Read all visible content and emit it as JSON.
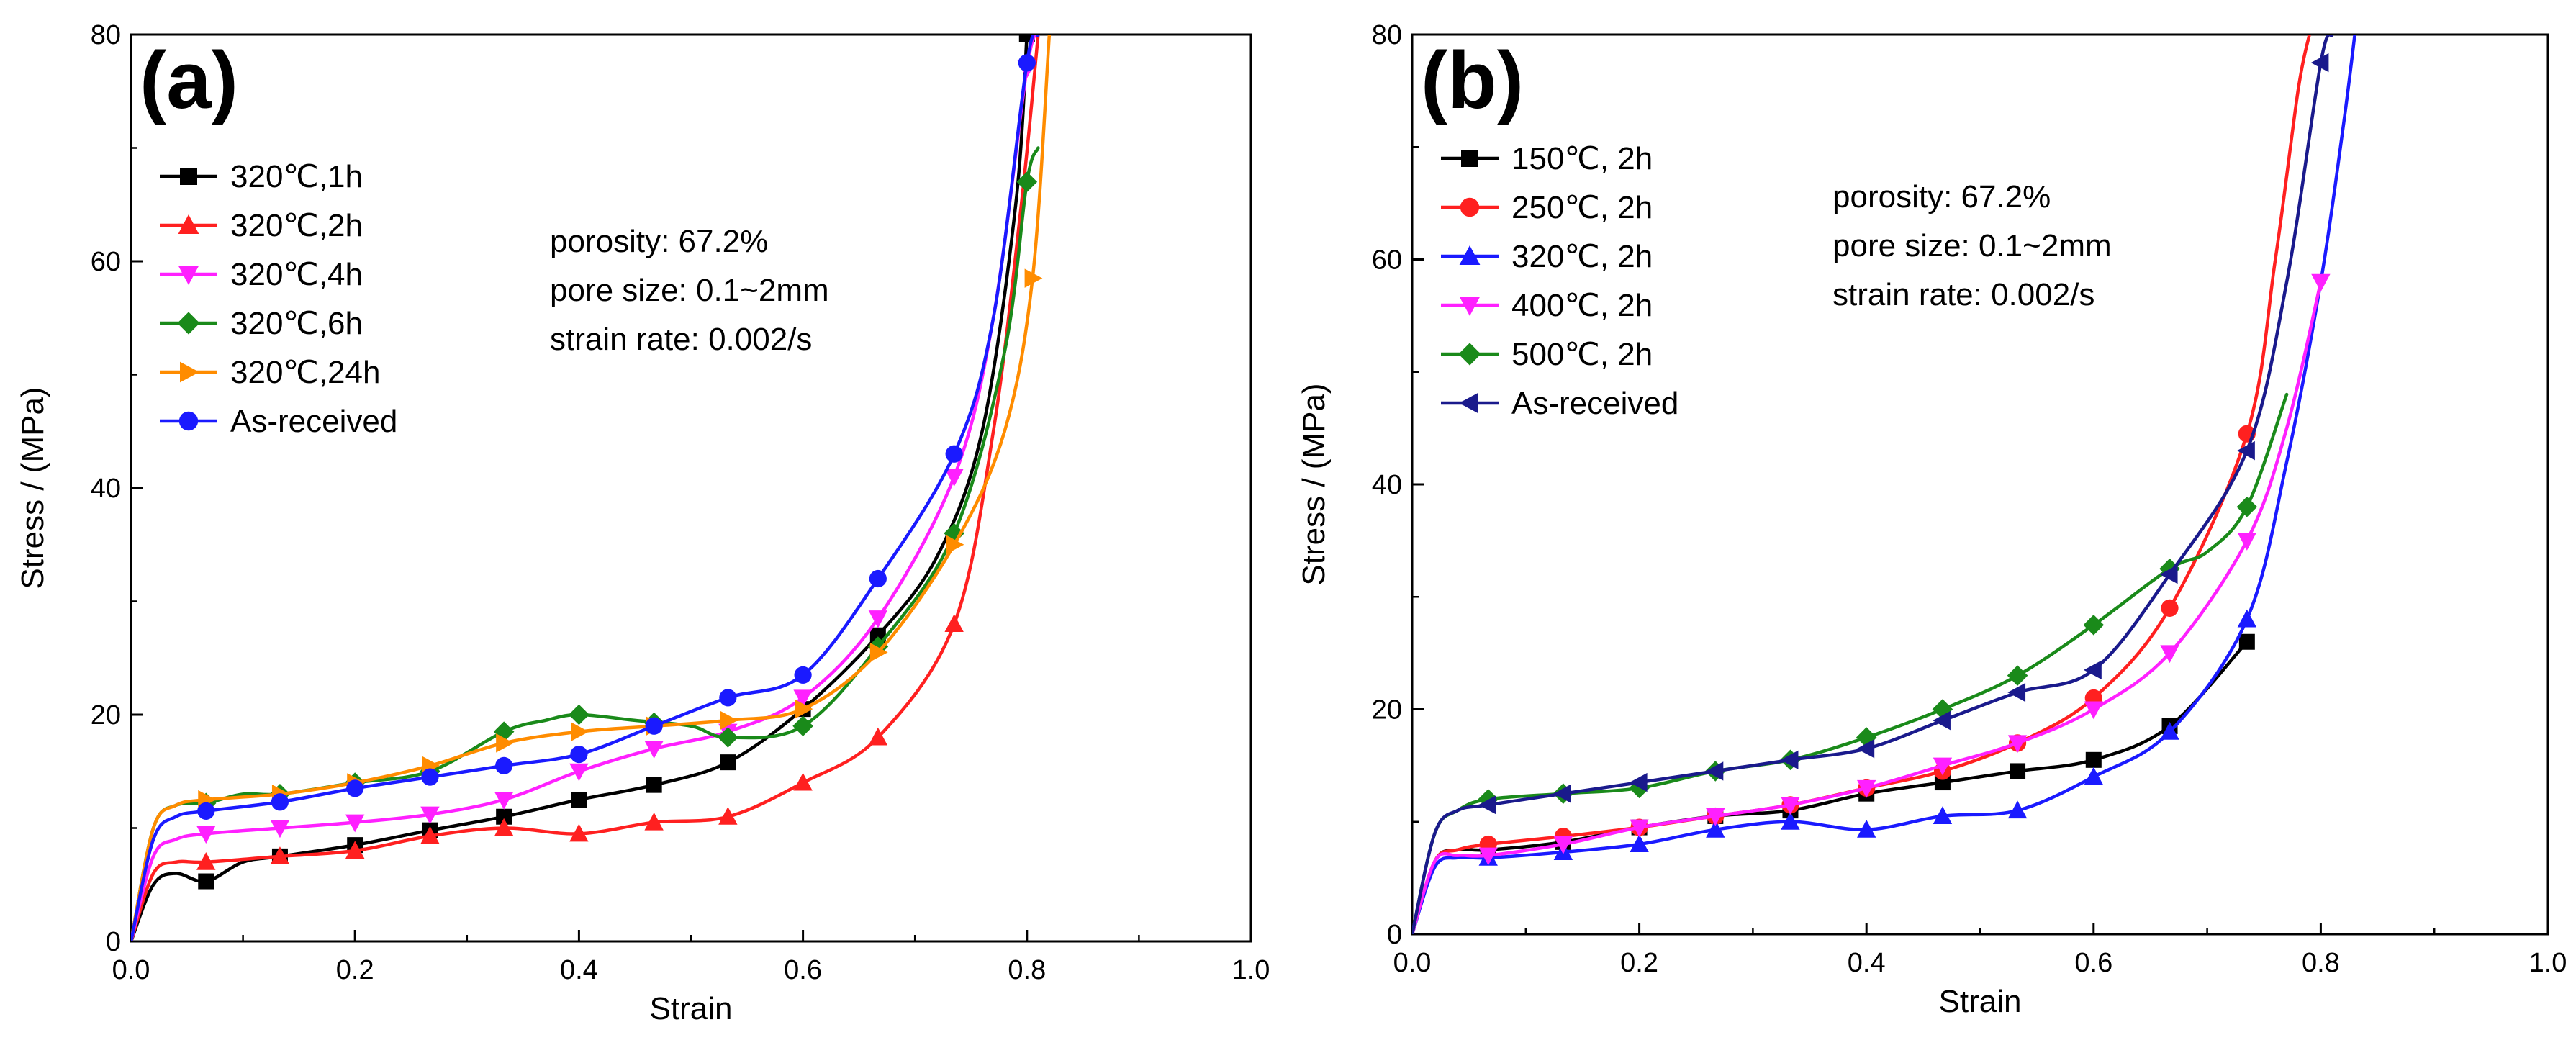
{
  "chart_data": [
    {
      "type": "line",
      "panel_label": "(a)",
      "xlabel": "Strain",
      "ylabel": "Stress / (MPa)",
      "xlim": [
        0.0,
        1.0
      ],
      "ylim": [
        0,
        80
      ],
      "xticks": [
        "0.0",
        "0.2",
        "0.4",
        "0.6",
        "0.8",
        "1.0"
      ],
      "yticks": [
        "0",
        "20",
        "40",
        "60",
        "80"
      ],
      "legend_position": "top-left",
      "annotation": [
        "porosity: 67.2%",
        "pore size: 0.1~2mm",
        "strain rate: 0.002/s"
      ],
      "series": [
        {
          "name": "320℃,1h",
          "color": "#000000",
          "marker": "square",
          "x": [
            0,
            0.02,
            0.04,
            0.067,
            0.1,
            0.133,
            0.2,
            0.267,
            0.333,
            0.4,
            0.467,
            0.533,
            0.6,
            0.667,
            0.72,
            0.76,
            0.79,
            0.8
          ],
          "y": [
            0,
            5,
            6,
            5.3,
            7,
            7.5,
            8.5,
            9.8,
            11,
            12.5,
            13.8,
            15.8,
            20.5,
            27,
            34,
            45,
            65,
            80
          ],
          "marker_x": [
            0.067,
            0.133,
            0.2,
            0.267,
            0.333,
            0.4,
            0.467,
            0.533,
            0.6,
            0.667,
            0.8
          ],
          "marker_y": [
            5.3,
            7.5,
            8.5,
            9.8,
            11,
            12.5,
            13.8,
            15.8,
            20.5,
            27,
            80
          ]
        },
        {
          "name": "320℃,2h",
          "color": "#ff2020",
          "marker": "triangle-up",
          "x": [
            0,
            0.02,
            0.04,
            0.067,
            0.133,
            0.2,
            0.267,
            0.333,
            0.4,
            0.467,
            0.533,
            0.6,
            0.667,
            0.735,
            0.77,
            0.795,
            0.81
          ],
          "y": [
            0,
            6,
            7,
            7,
            7.5,
            8,
            9.3,
            10,
            9.5,
            10.5,
            11,
            14,
            18,
            28,
            45,
            65,
            80
          ],
          "marker_x": [
            0.067,
            0.133,
            0.2,
            0.267,
            0.333,
            0.4,
            0.467,
            0.533,
            0.6,
            0.667,
            0.735
          ],
          "marker_y": [
            7,
            7.5,
            8,
            9.3,
            10,
            9.5,
            10.5,
            11,
            14,
            18,
            28
          ]
        },
        {
          "name": "320℃,4h",
          "color": "#ff20ff",
          "marker": "triangle-down",
          "x": [
            0,
            0.02,
            0.04,
            0.067,
            0.133,
            0.2,
            0.267,
            0.333,
            0.4,
            0.467,
            0.533,
            0.6,
            0.667,
            0.735,
            0.77,
            0.8,
            0.81
          ],
          "y": [
            0,
            7.5,
            9,
            9.5,
            10,
            10.5,
            11.2,
            12.5,
            15,
            17,
            18.5,
            21.5,
            28.5,
            41,
            55,
            77,
            80
          ],
          "marker_x": [
            0.067,
            0.133,
            0.2,
            0.267,
            0.333,
            0.4,
            0.467,
            0.533,
            0.6,
            0.667,
            0.735,
            0.8
          ],
          "marker_y": [
            9.5,
            10,
            10.5,
            11.2,
            12.5,
            15,
            17,
            18.5,
            21.5,
            28.5,
            41,
            77
          ]
        },
        {
          "name": "320℃,6h",
          "color": "#1a8a1a",
          "marker": "diamond",
          "x": [
            0,
            0.02,
            0.04,
            0.067,
            0.1,
            0.133,
            0.2,
            0.267,
            0.333,
            0.37,
            0.4,
            0.45,
            0.5,
            0.533,
            0.6,
            0.667,
            0.735,
            0.78,
            0.8,
            0.81
          ],
          "y": [
            0,
            10,
            12,
            12.2,
            13,
            13,
            14,
            15,
            18.5,
            19.5,
            20,
            19.5,
            19,
            18,
            19,
            26,
            36,
            52,
            67,
            70
          ],
          "marker_x": [
            0.067,
            0.133,
            0.2,
            0.267,
            0.333,
            0.4,
            0.467,
            0.533,
            0.6,
            0.667,
            0.735,
            0.8
          ],
          "marker_y": [
            12.2,
            13,
            14,
            15,
            18.5,
            20,
            19.3,
            18,
            19,
            26,
            36,
            67
          ]
        },
        {
          "name": "320℃,24h",
          "color": "#ff8c00",
          "marker": "triangle-right",
          "x": [
            0,
            0.02,
            0.04,
            0.067,
            0.133,
            0.2,
            0.267,
            0.333,
            0.4,
            0.467,
            0.533,
            0.6,
            0.667,
            0.735,
            0.78,
            0.805,
            0.82
          ],
          "y": [
            0,
            10,
            12,
            12.5,
            13,
            14,
            15.5,
            17.5,
            18.5,
            19,
            19.5,
            20.5,
            25.5,
            35,
            45,
            58.5,
            80
          ],
          "marker_x": [
            0.067,
            0.133,
            0.2,
            0.267,
            0.333,
            0.4,
            0.467,
            0.533,
            0.6,
            0.667,
            0.735,
            0.805
          ],
          "marker_y": [
            12.5,
            13,
            14,
            15.5,
            17.5,
            18.5,
            19,
            19.5,
            20.5,
            25.5,
            35,
            58.5
          ]
        },
        {
          "name": "As-received",
          "color": "#1a1aff",
          "marker": "circle",
          "x": [
            0,
            0.02,
            0.04,
            0.067,
            0.133,
            0.2,
            0.267,
            0.333,
            0.4,
            0.467,
            0.533,
            0.6,
            0.667,
            0.735,
            0.77,
            0.8,
            0.81
          ],
          "y": [
            0,
            9,
            11,
            11.5,
            12.3,
            13.5,
            14.5,
            15.5,
            16.5,
            19,
            21.5,
            23.5,
            32,
            43,
            55,
            77.5,
            80
          ],
          "marker_x": [
            0.067,
            0.133,
            0.2,
            0.267,
            0.333,
            0.4,
            0.467,
            0.533,
            0.6,
            0.667,
            0.735,
            0.8
          ],
          "marker_y": [
            11.5,
            12.3,
            13.5,
            14.5,
            15.5,
            16.5,
            19,
            21.5,
            23.5,
            32,
            43,
            77.5
          ]
        }
      ]
    },
    {
      "type": "line",
      "panel_label": "(b)",
      "xlabel": "Strain",
      "ylabel": "Stress / (MPa)",
      "xlim": [
        0.0,
        1.0
      ],
      "ylim": [
        0,
        80
      ],
      "xticks": [
        "0.0",
        "0.2",
        "0.4",
        "0.6",
        "0.8",
        "1.0"
      ],
      "yticks": [
        "0",
        "20",
        "40",
        "60",
        "80"
      ],
      "legend_position": "top-left",
      "annotation": [
        "porosity: 67.2%",
        "pore size: 0.1~2mm",
        "strain rate: 0.002/s"
      ],
      "series": [
        {
          "name": "150℃, 2h",
          "color": "#000000",
          "marker": "square",
          "x": [
            0,
            0.02,
            0.04,
            0.067,
            0.133,
            0.2,
            0.267,
            0.333,
            0.4,
            0.467,
            0.533,
            0.6,
            0.667,
            0.735
          ],
          "y": [
            0,
            6.5,
            7.5,
            7.5,
            8.2,
            9.5,
            10.5,
            11,
            12.5,
            13.5,
            14.5,
            15.5,
            18.5,
            26
          ],
          "marker_x": [
            0.067,
            0.133,
            0.2,
            0.267,
            0.333,
            0.4,
            0.467,
            0.533,
            0.6,
            0.667,
            0.735
          ],
          "marker_y": [
            7.5,
            8.2,
            9.5,
            10.5,
            11,
            12.5,
            13.5,
            14.5,
            15.5,
            18.5,
            26
          ]
        },
        {
          "name": "250℃, 2h",
          "color": "#ff2020",
          "marker": "circle",
          "x": [
            0,
            0.02,
            0.04,
            0.067,
            0.133,
            0.2,
            0.267,
            0.333,
            0.4,
            0.467,
            0.533,
            0.6,
            0.667,
            0.735,
            0.76,
            0.78,
            0.79
          ],
          "y": [
            0,
            6.5,
            7.5,
            8,
            8.7,
            9.5,
            10.5,
            11.5,
            13,
            14.5,
            17,
            21,
            29,
            44.5,
            60,
            75,
            80
          ],
          "marker_x": [
            0.067,
            0.133,
            0.2,
            0.267,
            0.333,
            0.4,
            0.467,
            0.533,
            0.6,
            0.667,
            0.735
          ],
          "marker_y": [
            8,
            8.7,
            9.5,
            10.5,
            11.5,
            13,
            14.5,
            17,
            21,
            29,
            44.5
          ]
        },
        {
          "name": "320℃, 2h",
          "color": "#1a1aff",
          "marker": "triangle-up",
          "x": [
            0,
            0.02,
            0.04,
            0.067,
            0.133,
            0.2,
            0.267,
            0.333,
            0.4,
            0.467,
            0.533,
            0.6,
            0.667,
            0.735,
            0.77,
            0.8,
            0.82,
            0.83
          ],
          "y": [
            0,
            6,
            6.8,
            6.8,
            7.3,
            8,
            9.3,
            10,
            9.3,
            10.5,
            11,
            14,
            18,
            28,
            42,
            58,
            72,
            80
          ],
          "marker_x": [
            0.067,
            0.133,
            0.2,
            0.267,
            0.333,
            0.4,
            0.467,
            0.533,
            0.6,
            0.667,
            0.735
          ],
          "marker_y": [
            6.8,
            7.3,
            8,
            9.3,
            10,
            9.3,
            10.5,
            11,
            14,
            18,
            28
          ]
        },
        {
          "name": "400℃, 2h",
          "color": "#ff20ff",
          "marker": "triangle-down",
          "x": [
            0,
            0.02,
            0.04,
            0.067,
            0.133,
            0.2,
            0.267,
            0.333,
            0.4,
            0.467,
            0.533,
            0.6,
            0.667,
            0.735,
            0.77,
            0.8
          ],
          "y": [
            0,
            6.5,
            7,
            7,
            8,
            9.5,
            10.5,
            11.5,
            13,
            15,
            17,
            20,
            25,
            35,
            45,
            58
          ],
          "marker_x": [
            0.067,
            0.133,
            0.2,
            0.267,
            0.333,
            0.4,
            0.467,
            0.533,
            0.6,
            0.667,
            0.735,
            0.8
          ],
          "marker_y": [
            7,
            8,
            9.5,
            10.5,
            11.5,
            13,
            15,
            17,
            20,
            25,
            35,
            58
          ]
        },
        {
          "name": "500℃, 2h",
          "color": "#1a8a1a",
          "marker": "diamond",
          "x": [
            0,
            0.02,
            0.04,
            0.067,
            0.133,
            0.2,
            0.267,
            0.333,
            0.4,
            0.467,
            0.533,
            0.6,
            0.667,
            0.7,
            0.735,
            0.77
          ],
          "y": [
            0,
            9,
            11,
            12,
            12.5,
            13,
            14.5,
            15.5,
            17.5,
            20,
            23,
            27.5,
            32.5,
            34,
            38,
            48
          ],
          "marker_x": [
            0.067,
            0.133,
            0.2,
            0.267,
            0.333,
            0.4,
            0.467,
            0.533,
            0.6,
            0.667,
            0.735
          ],
          "marker_y": [
            12,
            12.5,
            13,
            14.5,
            15.5,
            17.5,
            20,
            23,
            27.5,
            32.5,
            38
          ]
        },
        {
          "name": "As-received",
          "color": "#1a1a8c",
          "marker": "triangle-left",
          "x": [
            0,
            0.02,
            0.04,
            0.067,
            0.133,
            0.2,
            0.267,
            0.333,
            0.4,
            0.467,
            0.533,
            0.6,
            0.667,
            0.735,
            0.77,
            0.8,
            0.81
          ],
          "y": [
            0,
            9,
            11,
            11.5,
            12.5,
            13.5,
            14.5,
            15.5,
            16.5,
            19,
            21.5,
            23.5,
            32,
            43,
            58,
            77.5,
            80
          ],
          "marker_x": [
            0.067,
            0.133,
            0.2,
            0.267,
            0.333,
            0.4,
            0.467,
            0.533,
            0.6,
            0.667,
            0.735,
            0.8
          ],
          "marker_y": [
            11.5,
            12.5,
            13.5,
            14.5,
            15.5,
            16.5,
            19,
            21.5,
            23.5,
            32,
            43,
            77.5
          ]
        }
      ]
    }
  ]
}
